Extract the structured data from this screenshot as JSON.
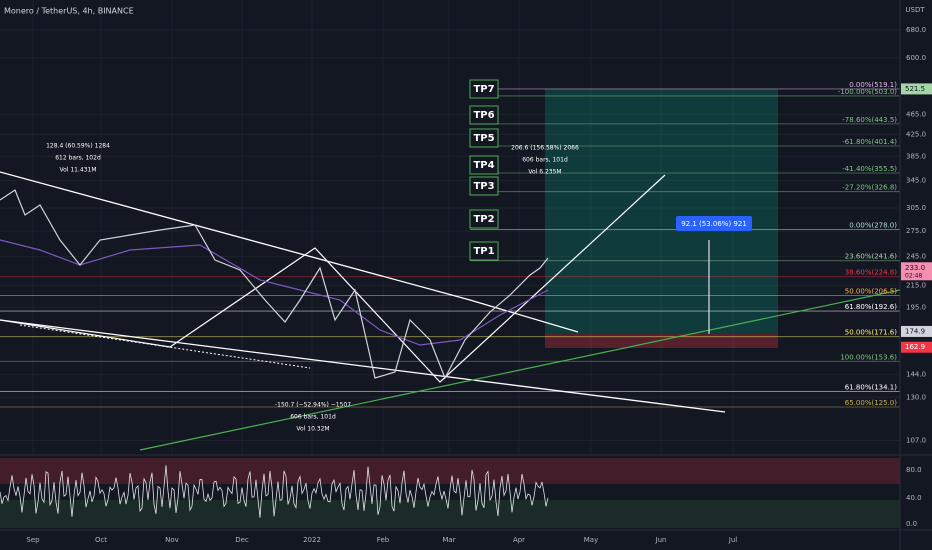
{
  "header": {
    "title": "Monero / TetherUS, 4h, BINANCE"
  },
  "price_axis": {
    "unit": "USDT",
    "ticks": [
      "680.0",
      "600.0",
      "465.0",
      "425.0",
      "385.0",
      "345.0",
      "305.0",
      "275.0",
      "245.0",
      "215.0",
      "195.0",
      "144.0",
      "130.0",
      "107.0"
    ]
  },
  "badges": [
    {
      "label": "521.5",
      "color": "#a5d6a7",
      "text": "#131722"
    },
    {
      "label": "233.0",
      "sub": "02:48",
      "color": "#f48fb1",
      "text": "#131722"
    },
    {
      "label": "174.9",
      "color": "#d1d4dc",
      "text": "#131722"
    },
    {
      "label": "162.9",
      "color": "#f23645",
      "text": "#ffffff"
    }
  ],
  "rsi_axis": {
    "ticks": [
      "80.0",
      "40.0",
      "0.0"
    ]
  },
  "time_axis": {
    "labels": [
      "Sep",
      "Oct",
      "Nov",
      "Dec",
      "2022",
      "Feb",
      "Mar",
      "Apr",
      "May",
      "Jun",
      "Jul"
    ]
  },
  "targets": [
    "TP7",
    "TP6",
    "TP5",
    "TP4",
    "TP3",
    "TP2",
    "TP1"
  ],
  "fib_levels": [
    {
      "label": "0.00%(519.1)",
      "color": "#e1bee7"
    },
    {
      "label": "-100.00%(503.0)",
      "color": "#81c784"
    },
    {
      "label": "-78.60%(443.5)",
      "color": "#81c784"
    },
    {
      "label": "-61.80%(401.4)",
      "color": "#81c784"
    },
    {
      "label": "-41.40%(355.5)",
      "color": "#81c784"
    },
    {
      "label": "-27.20%(326.8)",
      "color": "#81c784"
    },
    {
      "label": "0.00%(278.0)",
      "color": "#b2dfdb"
    },
    {
      "label": "23.60%(241.6)",
      "color": "#a5d6a7"
    },
    {
      "label": "38.60%(224.8)",
      "color": "#f23645"
    },
    {
      "label": "50.00%(206.5)",
      "color": "#ffb74d"
    },
    {
      "label": "61.80%(192.6)",
      "color": "#ffffff"
    },
    {
      "label": "50.00%(171.6)",
      "color": "#fff176"
    },
    {
      "label": "100.00%(153.6)",
      "color": "#81c784"
    },
    {
      "label": "61.80%(134.1)",
      "color": "#ffffff"
    },
    {
      "label": "65.00%(125.0)",
      "color": "#c5b358"
    }
  ],
  "measurements": [
    {
      "lines": [
        "128.4 (60.59%) 1284",
        "612 bars, 102d",
        "Vol 11.431M"
      ]
    },
    {
      "lines": [
        "206.6 (156.58%) 2066",
        "606 bars, 101d",
        "Vol 6.235M"
      ]
    },
    {
      "lines": [
        "-150.7 (−52.94%) −1507",
        "606 bars, 101d",
        "Vol 10.32M"
      ]
    }
  ],
  "position_measure": "92.1 (53.06%) 921"
}
